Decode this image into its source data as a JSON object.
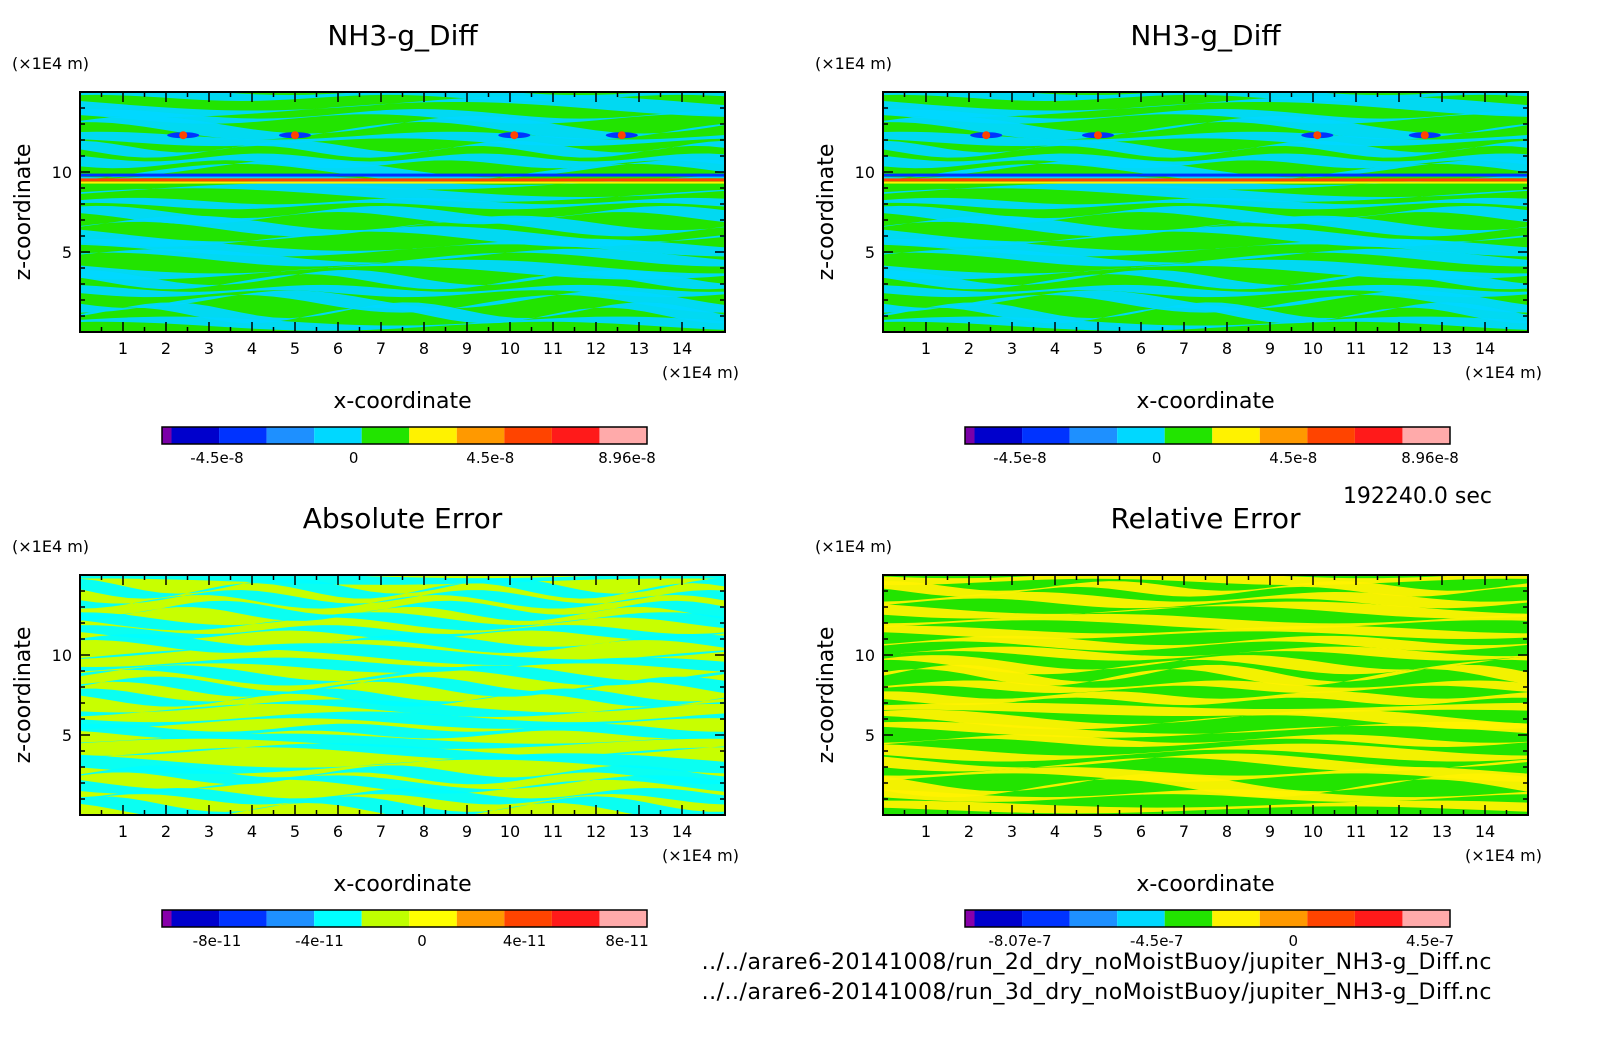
{
  "chart_data": [
    {
      "type": "heatmap",
      "title": "NH3-g_Diff",
      "xlabel": "x-coordinate",
      "ylabel": "z-coordinate",
      "x_unit": "(×1E4 m)",
      "y_unit": "(×1E4 m)",
      "xticks": [
        "1",
        "2",
        "3",
        "4",
        "5",
        "6",
        "7",
        "8",
        "9",
        "10",
        "11",
        "12",
        "13",
        "14"
      ],
      "yticks": [
        "5",
        "10"
      ],
      "xlim": [
        0,
        15
      ],
      "ylim": [
        0,
        15
      ],
      "colorbar_labels": [
        "-4.5e-8",
        "0",
        "4.5e-8",
        "8.96e-8"
      ],
      "colorbar_colors": [
        "#7a00a8",
        "#0000cc",
        "#0033ff",
        "#1e90ff",
        "#00d8ff",
        "#22e400",
        "#fff200",
        "#ff9900",
        "#ff4400",
        "#ff1a1a",
        "#ffaaaa"
      ],
      "dominant_colors": [
        "#22e400",
        "#00d8ff"
      ]
    },
    {
      "type": "heatmap",
      "title": "NH3-g_Diff",
      "xlabel": "x-coordinate",
      "ylabel": "z-coordinate",
      "x_unit": "(×1E4 m)",
      "y_unit": "(×1E4 m)",
      "xticks": [
        "1",
        "2",
        "3",
        "4",
        "5",
        "6",
        "7",
        "8",
        "9",
        "10",
        "11",
        "12",
        "13",
        "14"
      ],
      "yticks": [
        "5",
        "10"
      ],
      "xlim": [
        0,
        15
      ],
      "ylim": [
        0,
        15
      ],
      "colorbar_labels": [
        "-4.5e-8",
        "0",
        "4.5e-8",
        "8.96e-8"
      ],
      "colorbar_colors": [
        "#7a00a8",
        "#0000cc",
        "#0033ff",
        "#1e90ff",
        "#00d8ff",
        "#22e400",
        "#fff200",
        "#ff9900",
        "#ff4400",
        "#ff1a1a",
        "#ffaaaa"
      ],
      "dominant_colors": [
        "#22e400",
        "#00d8ff"
      ]
    },
    {
      "type": "heatmap",
      "title": "Absolute Error",
      "xlabel": "x-coordinate",
      "ylabel": "z-coordinate",
      "x_unit": "(×1E4 m)",
      "y_unit": "(×1E4 m)",
      "xticks": [
        "1",
        "2",
        "3",
        "4",
        "5",
        "6",
        "7",
        "8",
        "9",
        "10",
        "11",
        "12",
        "13",
        "14"
      ],
      "yticks": [
        "5",
        "10"
      ],
      "xlim": [
        0,
        15
      ],
      "ylim": [
        0,
        15
      ],
      "colorbar_labels": [
        "-8e-11",
        "-4e-11",
        "0",
        "4e-11",
        "8e-11"
      ],
      "colorbar_colors": [
        "#8800aa",
        "#0000cc",
        "#0033ff",
        "#1e90ff",
        "#00ffff",
        "#bfff00",
        "#ffff00",
        "#ff9900",
        "#ff4400",
        "#ff1a1a",
        "#ffaaaa"
      ],
      "dominant_colors": [
        "#c8ff00",
        "#00ffff"
      ]
    },
    {
      "type": "heatmap",
      "title": "Relative Error",
      "xlabel": "x-coordinate",
      "ylabel": "z-coordinate",
      "x_unit": "(×1E4 m)",
      "y_unit": "(×1E4 m)",
      "xticks": [
        "1",
        "2",
        "3",
        "4",
        "5",
        "6",
        "7",
        "8",
        "9",
        "10",
        "11",
        "12",
        "13",
        "14"
      ],
      "yticks": [
        "5",
        "10"
      ],
      "xlim": [
        0,
        15
      ],
      "ylim": [
        0,
        15
      ],
      "colorbar_labels": [
        "-8.07e-7",
        "-4.5e-7",
        "0",
        "4.5e-7"
      ],
      "colorbar_colors": [
        "#8800aa",
        "#0000cc",
        "#0033ff",
        "#1e90ff",
        "#00d8ff",
        "#22e400",
        "#fff200",
        "#ff9900",
        "#ff4400",
        "#ff1a1a",
        "#ffaaaa"
      ],
      "dominant_colors": [
        "#22e400",
        "#fff200"
      ]
    }
  ],
  "time_label": "192240.0 sec",
  "file_paths": [
    "../../arare6-20141008/run_2d_dry_noMoistBuoy/jupiter_NH3-g_Diff.nc",
    "../../arare6-20141008/run_3d_dry_noMoistBuoy/jupiter_NH3-g_Diff.nc"
  ]
}
